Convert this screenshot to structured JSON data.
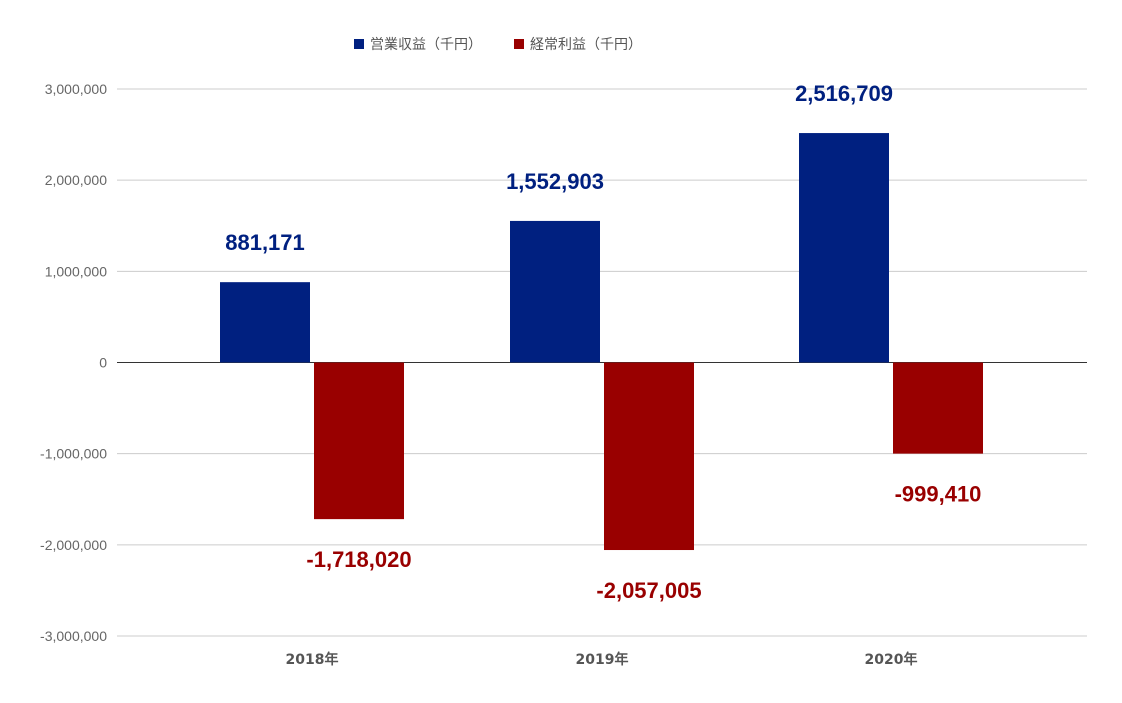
{
  "chart_data": {
    "type": "bar",
    "categories": [
      "2018年",
      "2019年",
      "2020年"
    ],
    "series": [
      {
        "name": "営業収益（千円）",
        "values": [
          881171,
          1552903,
          2516709
        ],
        "labels": [
          "881,171",
          "1,552,903",
          "2,516,709"
        ],
        "color": "#002080"
      },
      {
        "name": "経常利益（千円）",
        "values": [
          -1718020,
          -2057005,
          -999410
        ],
        "labels": [
          "-1,718,020",
          "-2,057,005",
          "-999,410"
        ],
        "color": "#990000"
      }
    ],
    "ylim": [
      -3000000,
      3000000
    ],
    "yticks": [
      3000000,
      2000000,
      1000000,
      0,
      -1000000,
      -2000000,
      -3000000
    ],
    "ytick_labels": [
      "3,000,000",
      "2,000,000",
      "1,000,000",
      "0",
      "-1,000,000",
      "-2,000,000",
      "-3,000,000"
    ],
    "legend_position": "top",
    "grid": true
  }
}
